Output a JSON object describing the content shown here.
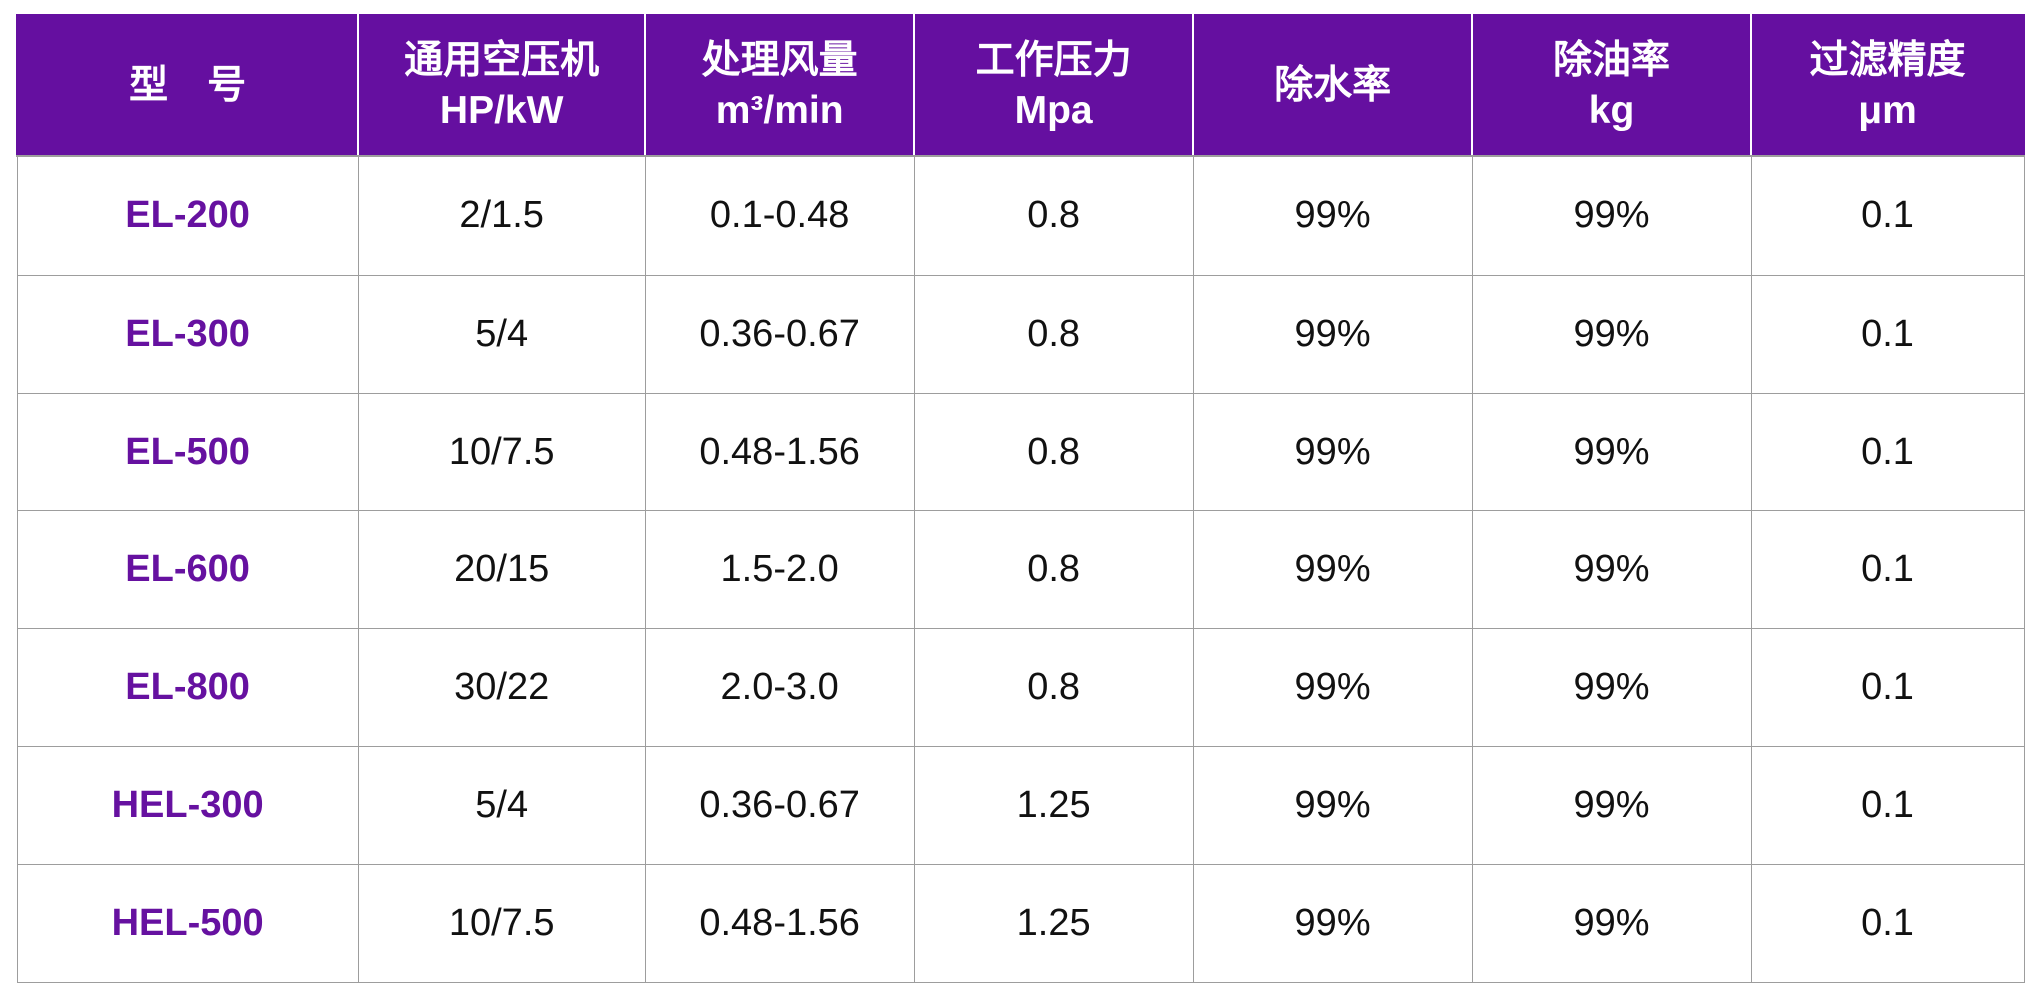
{
  "table": {
    "name": "filter-specification-table",
    "columns": [
      {
        "label": "型　号",
        "sub": ""
      },
      {
        "label": "通用空压机",
        "sub": "HP/kW"
      },
      {
        "label": "处理风量",
        "sub": "m³/min"
      },
      {
        "label": "工作压力",
        "sub": "Mpa"
      },
      {
        "label": "除水率",
        "sub": ""
      },
      {
        "label": "除油率",
        "sub": "kg"
      },
      {
        "label": "过滤精度",
        "sub": "μm"
      }
    ],
    "rows": [
      {
        "model": "EL-200",
        "hp_kw": "2/1.5",
        "flow": "0.1-0.48",
        "pressure": "0.8",
        "water_removal": "99%",
        "oil_removal": "99%",
        "filtration": "0.1"
      },
      {
        "model": "EL-300",
        "hp_kw": "5/4",
        "flow": "0.36-0.67",
        "pressure": "0.8",
        "water_removal": "99%",
        "oil_removal": "99%",
        "filtration": "0.1"
      },
      {
        "model": "EL-500",
        "hp_kw": "10/7.5",
        "flow": "0.48-1.56",
        "pressure": "0.8",
        "water_removal": "99%",
        "oil_removal": "99%",
        "filtration": "0.1"
      },
      {
        "model": "EL-600",
        "hp_kw": "20/15",
        "flow": "1.5-2.0",
        "pressure": "0.8",
        "water_removal": "99%",
        "oil_removal": "99%",
        "filtration": "0.1"
      },
      {
        "model": "EL-800",
        "hp_kw": "30/22",
        "flow": "2.0-3.0",
        "pressure": "0.8",
        "water_removal": "99%",
        "oil_removal": "99%",
        "filtration": "0.1"
      },
      {
        "model": "HEL-300",
        "hp_kw": "5/4",
        "flow": "0.36-0.67",
        "pressure": "1.25",
        "water_removal": "99%",
        "oil_removal": "99%",
        "filtration": "0.1"
      },
      {
        "model": "HEL-500",
        "hp_kw": "10/7.5",
        "flow": "0.48-1.56",
        "pressure": "1.25",
        "water_removal": "99%",
        "oil_removal": "99%",
        "filtration": "0.1"
      }
    ],
    "field_order": [
      "model",
      "hp_kw",
      "flow",
      "pressure",
      "water_removal",
      "oil_removal",
      "filtration"
    ]
  },
  "colors": {
    "header_bg": "#650fa0",
    "header_text": "#ffffff",
    "header_divider": "#ffffff",
    "grid_border": "#9d9d9d",
    "model_text": "#6611a0",
    "data_text": "#111111",
    "page_bg": "#ffffff"
  }
}
